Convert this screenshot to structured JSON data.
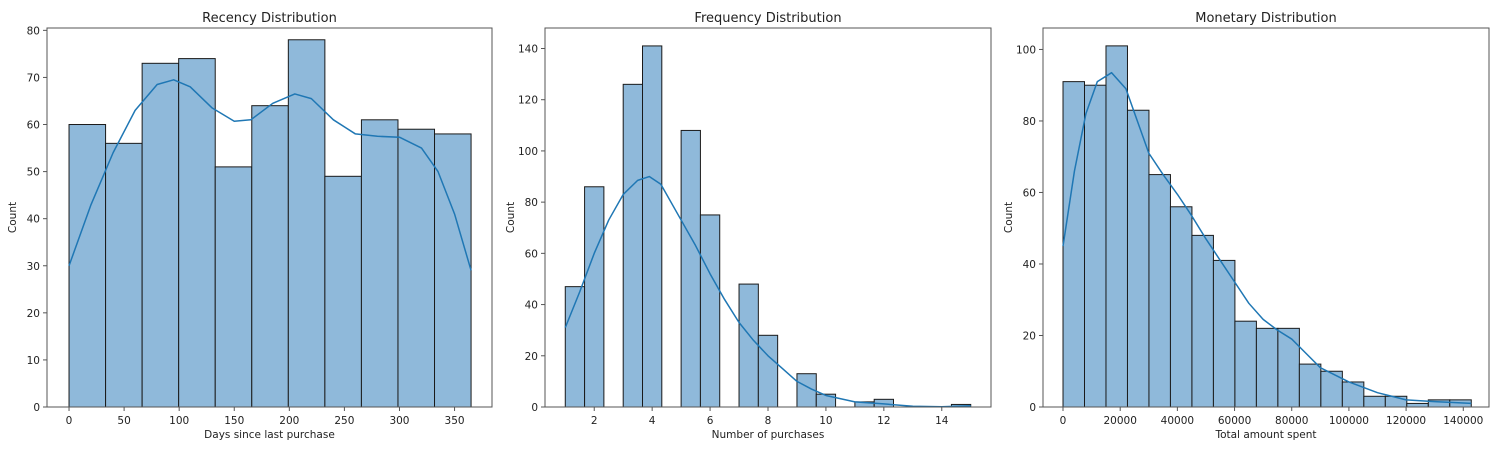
{
  "colors": {
    "bar_fill": "#8fb9da",
    "bar_edge": "#1a1a1a",
    "kde_line": "#1f77b4",
    "axes": "#555555"
  },
  "chart_data": [
    {
      "type": "bar",
      "kind": "histogram-with-kde",
      "title": "Recency Distribution",
      "xlabel": "Days since last purchase",
      "ylabel": "Count",
      "xlim": [
        -20,
        384
      ],
      "ylim": [
        0,
        80.5
      ],
      "bin_range": [
        0,
        365
      ],
      "values": [
        60,
        56,
        73,
        74,
        51,
        64,
        78,
        49,
        61,
        59,
        58
      ],
      "xticks": [
        0,
        50,
        100,
        150,
        200,
        250,
        300,
        350
      ],
      "xtick_labels": [
        "0",
        "50",
        "100",
        "150",
        "200",
        "250",
        "300",
        "350"
      ],
      "yticks": [
        0,
        10,
        20,
        30,
        40,
        50,
        60,
        70,
        80
      ],
      "ytick_labels": [
        "0",
        "10",
        "20",
        "30",
        "40",
        "50",
        "60",
        "70",
        "80"
      ],
      "kde": {
        "x": [
          0,
          20,
          40,
          60,
          80,
          95,
          110,
          130,
          150,
          165,
          185,
          205,
          220,
          240,
          260,
          280,
          300,
          320,
          335,
          350,
          365
        ],
        "y": [
          30,
          43,
          54,
          63,
          68.5,
          69.5,
          68,
          63.5,
          60.7,
          61,
          64.5,
          66.5,
          65.5,
          61,
          58,
          57.5,
          57.3,
          55,
          50,
          41,
          29
        ]
      }
    },
    {
      "type": "bar",
      "kind": "histogram-with-kde",
      "title": "Frequency Distribution",
      "xlabel": "Number of purchases",
      "ylabel": "Count",
      "xlim": [
        0.3,
        15.7
      ],
      "ylim": [
        0,
        148
      ],
      "bin_range": [
        1,
        15
      ],
      "values": [
        47,
        86,
        0,
        126,
        141,
        0,
        108,
        75,
        0,
        48,
        28,
        0,
        13,
        5,
        0,
        2,
        3,
        0,
        0,
        0,
        1
      ],
      "xticks": [
        2,
        4,
        6,
        8,
        10,
        12,
        14
      ],
      "xtick_labels": [
        "2",
        "4",
        "6",
        "8",
        "10",
        "12",
        "14"
      ],
      "yticks": [
        0,
        20,
        40,
        60,
        80,
        100,
        120,
        140
      ],
      "ytick_labels": [
        "0",
        "20",
        "40",
        "60",
        "80",
        "100",
        "120",
        "140"
      ],
      "kde": {
        "x": [
          1,
          1.5,
          2,
          2.5,
          3,
          3.5,
          3.9,
          4.3,
          5,
          5.5,
          6,
          6.5,
          7,
          7.5,
          8,
          8.5,
          9,
          9.5,
          10,
          11,
          12,
          13,
          14,
          15
        ],
        "y": [
          31,
          45,
          60,
          73,
          83,
          88.5,
          90,
          87,
          73,
          63,
          52,
          42,
          33,
          26,
          20,
          15,
          10,
          7,
          4.5,
          2,
          1.2,
          0.3,
          0.1,
          0.5
        ]
      }
    },
    {
      "type": "bar",
      "kind": "histogram-with-kde",
      "title": "Monetary Distribution",
      "xlabel": "Total amount spent",
      "ylabel": "Count",
      "xlim": [
        -7000,
        149000
      ],
      "ylim": [
        0,
        106
      ],
      "bin_range": [
        0,
        142800
      ],
      "values": [
        91,
        90,
        101,
        83,
        65,
        56,
        48,
        41,
        24,
        22,
        22,
        12,
        10,
        7,
        3,
        3,
        1,
        2,
        2
      ],
      "xticks": [
        0,
        20000,
        40000,
        60000,
        80000,
        100000,
        120000,
        140000
      ],
      "xtick_labels": [
        "0",
        "20000",
        "40000",
        "60000",
        "80000",
        "100000",
        "120000",
        "140000"
      ],
      "yticks": [
        0,
        20,
        40,
        60,
        80,
        100
      ],
      "ytick_labels": [
        "0",
        "20",
        "40",
        "60",
        "80",
        "100"
      ],
      "kde": {
        "x": [
          0,
          4000,
          8000,
          12000,
          17000,
          22000,
          26000,
          30000,
          35000,
          40000,
          45000,
          50000,
          55000,
          60000,
          65000,
          70000,
          75000,
          80000,
          85000,
          90000,
          100000,
          110000,
          120000,
          130000,
          142800
        ],
        "y": [
          45,
          66,
          82,
          91,
          93.5,
          89,
          80,
          71,
          65,
          59.5,
          53.5,
          47,
          41,
          35,
          29,
          24.5,
          21.5,
          19,
          15,
          11,
          7,
          4,
          2,
          1.5,
          1
        ]
      }
    }
  ]
}
